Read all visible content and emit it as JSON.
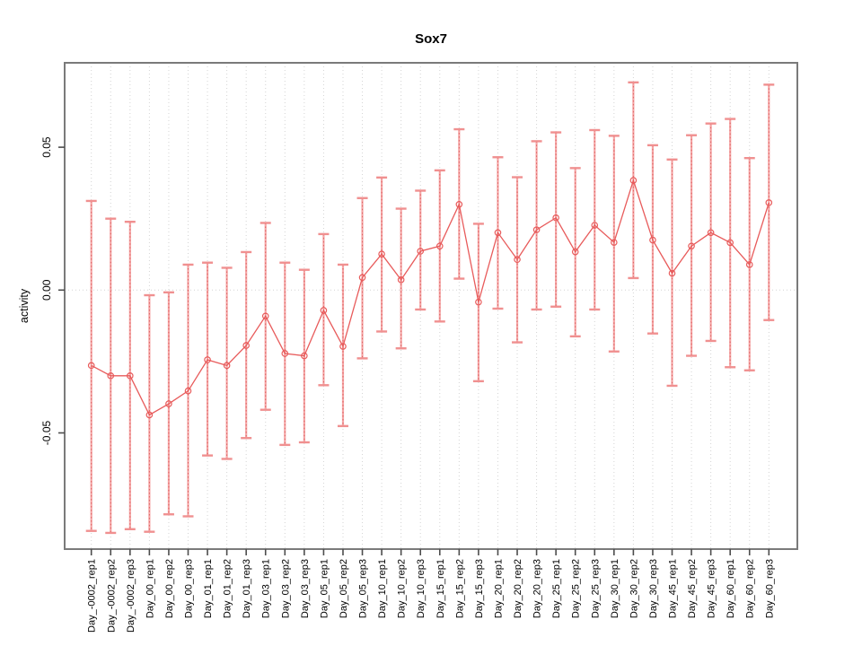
{
  "chart_data": {
    "type": "line",
    "title": "Sox7",
    "ylabel": "activity",
    "xlabel": "",
    "legend_position": "none",
    "grid": "dotted vertical line per category, dotted horizontal line at y=0",
    "ylim": [
      -0.0905,
      0.0795
    ],
    "ytick_labels": [
      "0.05",
      "0.00",
      "-0.05"
    ],
    "yticks": [
      0.05,
      0.0,
      -0.05
    ],
    "categories": [
      "Day_-0002_rep1",
      "Day_-0002_rep2",
      "Day_-0002_rep3",
      "Day_00_rep1",
      "Day_00_rep2",
      "Day_00_rep3",
      "Day_01_rep1",
      "Day_01_rep2",
      "Day_01_rep3",
      "Day_03_rep1",
      "Day_03_rep2",
      "Day_03_rep3",
      "Day_05_rep1",
      "Day_05_rep2",
      "Day_05_rep3",
      "Day_10_rep1",
      "Day_10_rep2",
      "Day_10_rep3",
      "Day_15_rep1",
      "Day_15_rep2",
      "Day_15_rep3",
      "Day_20_rep1",
      "Day_20_rep2",
      "Day_20_rep3",
      "Day_25_rep1",
      "Day_25_rep2",
      "Day_25_rep3",
      "Day_30_rep1",
      "Day_30_rep2",
      "Day_30_rep3",
      "Day_45_rep1",
      "Day_45_rep2",
      "Day_45_rep3",
      "Day_60_rep1",
      "Day_60_rep2",
      "Day_60_rep3"
    ],
    "series": [
      {
        "name": "activity",
        "marker": "open-circle",
        "values": [
          -0.0264,
          -0.03,
          -0.03,
          -0.0437,
          -0.0398,
          -0.0353,
          -0.0244,
          -0.0264,
          -0.0194,
          -0.0091,
          -0.0222,
          -0.023,
          -0.0071,
          -0.0197,
          0.0044,
          0.0126,
          0.0036,
          0.0136,
          0.0154,
          0.03,
          -0.0042,
          0.0201,
          0.0107,
          0.0211,
          0.0253,
          0.0134,
          0.0227,
          0.0167,
          0.0384,
          0.0175,
          0.0059,
          0.0154,
          0.0201,
          0.0166,
          0.0089,
          0.0306
        ],
        "error_lower": [
          -0.0843,
          -0.085,
          -0.0837,
          -0.0846,
          -0.0785,
          -0.0792,
          -0.0579,
          -0.0591,
          -0.0518,
          -0.0419,
          -0.0542,
          -0.0533,
          -0.0333,
          -0.0476,
          -0.0239,
          -0.0145,
          -0.0204,
          -0.0068,
          -0.011,
          0.004,
          -0.0319,
          -0.0065,
          -0.0183,
          -0.0068,
          -0.0058,
          -0.0162,
          -0.0068,
          -0.0215,
          0.0042,
          -0.0152,
          -0.0335,
          -0.023,
          -0.0178,
          -0.027,
          -0.0281,
          -0.0105
        ],
        "error_upper": [
          0.0312,
          0.025,
          0.0239,
          -0.0018,
          -0.0008,
          0.0089,
          0.0096,
          0.0078,
          0.0133,
          0.0235,
          0.0096,
          0.0071,
          0.0196,
          0.0089,
          0.0322,
          0.0394,
          0.0285,
          0.0348,
          0.0419,
          0.0563,
          0.0232,
          0.0465,
          0.0395,
          0.0521,
          0.0552,
          0.0427,
          0.056,
          0.054,
          0.0727,
          0.0507,
          0.0457,
          0.0542,
          0.0583,
          0.0599,
          0.0462,
          0.0719
        ]
      }
    ]
  },
  "colors": {
    "line": "#e85b5b",
    "marker": "#e85b5b",
    "errorbar": "#f5a6a6",
    "errorbar_cap": "#f09090",
    "errorbar_dash": "#dd5f5f",
    "grid": "#d4d4d4",
    "frame": "#7a7a7a",
    "tick": "#4d4d4d",
    "text": "#000000"
  }
}
